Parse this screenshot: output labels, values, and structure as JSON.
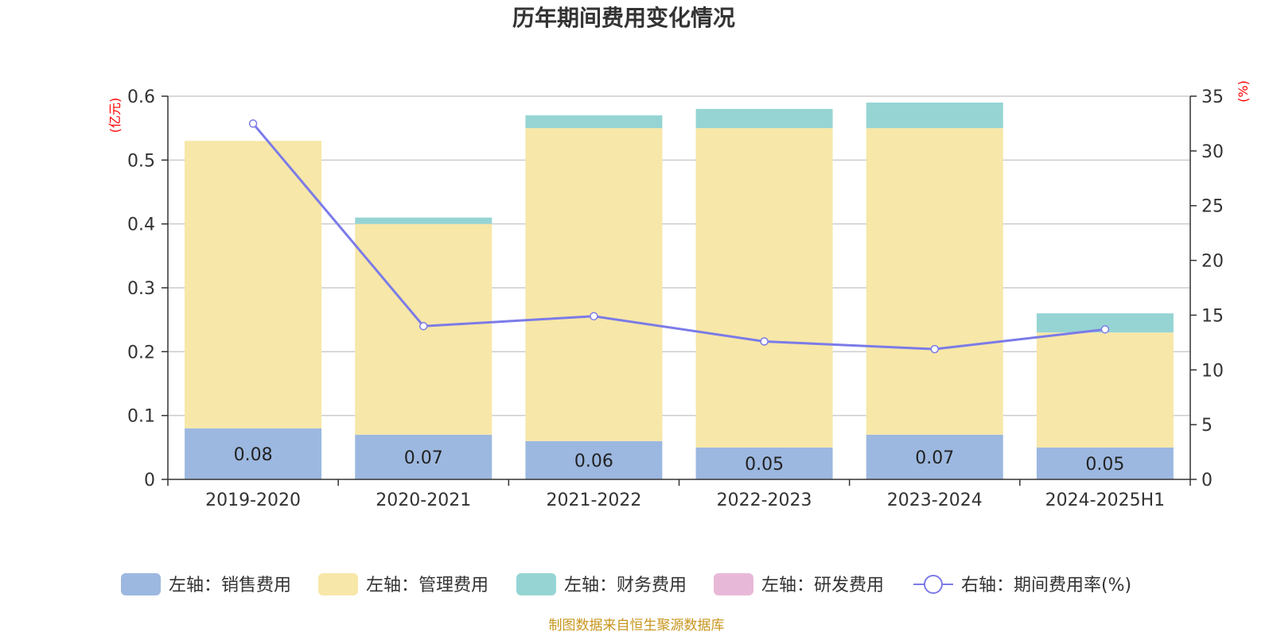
{
  "chart_data": {
    "type": "bar",
    "title": "历年期间费用变化情况",
    "categories": [
      "2019-2020",
      "2020-2021",
      "2021-2022",
      "2022-2023",
      "2023-2024",
      "2024-2025H1"
    ],
    "stacked": true,
    "left_axis": {
      "unit": "(亿元)",
      "ylim": [
        0,
        0.6
      ],
      "ticks": [
        "0",
        "0.1",
        "0.2",
        "0.3",
        "0.4",
        "0.5",
        "0.6"
      ]
    },
    "right_axis": {
      "unit": "(%)",
      "ylim": [
        0,
        35
      ],
      "ticks": [
        "0",
        "5",
        "10",
        "15",
        "20",
        "25",
        "30",
        "35"
      ]
    },
    "series": [
      {
        "name": "左轴：销售费用",
        "type": "bar",
        "axis": "left",
        "color": "#9cb8e0",
        "values": [
          0.08,
          0.07,
          0.06,
          0.05,
          0.07,
          0.05
        ],
        "labels": [
          "0.08",
          "0.07",
          "0.06",
          "0.05",
          "0.07",
          "0.05"
        ]
      },
      {
        "name": "左轴：管理费用",
        "type": "bar",
        "axis": "left",
        "color": "#f7e7a8",
        "values": [
          0.45,
          0.33,
          0.49,
          0.5,
          0.48,
          0.18
        ]
      },
      {
        "name": "左轴：财务费用",
        "type": "bar",
        "axis": "left",
        "color": "#96d4d4",
        "values": [
          0.0,
          0.01,
          0.02,
          0.03,
          0.04,
          0.03
        ]
      },
      {
        "name": "左轴：研发费用",
        "type": "bar",
        "axis": "left",
        "color": "#e8b8d8",
        "values": [
          0,
          0,
          0,
          0,
          0,
          0
        ]
      },
      {
        "name": "右轴：期间费用率(%)",
        "type": "line",
        "axis": "right",
        "color": "#7b7be8",
        "values": [
          32.5,
          14.0,
          14.9,
          12.6,
          11.9,
          13.7
        ]
      }
    ],
    "grid": true,
    "legend_position": "bottom",
    "source": "制图数据来自恒生聚源数据库"
  }
}
